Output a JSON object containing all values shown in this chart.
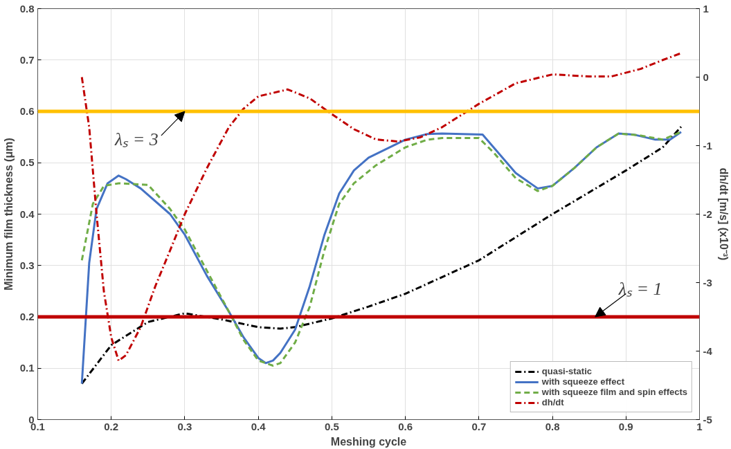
{
  "chart_data": {
    "type": "line",
    "xlabel": "Meshing cycle",
    "ylabel": "Minimum film thickness (μm)",
    "y2label": "dh/dt [m/s] (x10⁻³)",
    "xlim": [
      0.1,
      1
    ],
    "xticks": [
      0.1,
      0.2,
      0.3,
      0.4,
      0.5,
      0.6,
      0.7,
      0.8,
      0.9,
      1
    ],
    "ylim": [
      0,
      0.8
    ],
    "yticks": [
      0,
      0.1,
      0.2,
      0.3,
      0.4,
      0.5,
      0.6,
      0.7,
      0.8
    ],
    "y2lim": [
      -5,
      1
    ],
    "y2ticks": [
      -5,
      -4,
      -3,
      -2,
      -1,
      0,
      1
    ],
    "grid": true,
    "legend": "bottom right",
    "series": [
      {
        "name": "quasi-static",
        "color": "#000000",
        "line_style": "dashdot",
        "x": [
          0.16,
          0.2,
          0.25,
          0.3,
          0.35,
          0.4,
          0.43,
          0.45,
          0.5,
          0.55,
          0.6,
          0.7,
          0.8,
          0.9,
          0.95,
          0.975
        ],
        "values": [
          0.07,
          0.145,
          0.19,
          0.207,
          0.195,
          0.18,
          0.177,
          0.18,
          0.197,
          0.22,
          0.245,
          0.31,
          0.4,
          0.485,
          0.53,
          0.57
        ]
      },
      {
        "name": "with squeeze effect",
        "color": "#4472c4",
        "line_style": "solid",
        "x": [
          0.16,
          0.17,
          0.18,
          0.195,
          0.21,
          0.22,
          0.24,
          0.28,
          0.3,
          0.33,
          0.36,
          0.38,
          0.4,
          0.41,
          0.42,
          0.43,
          0.45,
          0.47,
          0.49,
          0.51,
          0.53,
          0.55,
          0.6,
          0.63,
          0.65,
          0.705,
          0.72,
          0.75,
          0.78,
          0.8,
          0.83,
          0.86,
          0.89,
          0.91,
          0.94,
          0.96,
          0.975
        ],
        "values": [
          0.07,
          0.305,
          0.41,
          0.46,
          0.475,
          0.468,
          0.45,
          0.4,
          0.36,
          0.28,
          0.21,
          0.16,
          0.12,
          0.11,
          0.115,
          0.13,
          0.175,
          0.26,
          0.36,
          0.44,
          0.485,
          0.51,
          0.545,
          0.556,
          0.557,
          0.555,
          0.53,
          0.48,
          0.45,
          0.455,
          0.49,
          0.53,
          0.557,
          0.555,
          0.545,
          0.545,
          0.56
        ]
      },
      {
        "name": "with squeeze film and spin effects",
        "color": "#70ad47",
        "line_style": "dashed",
        "x": [
          0.16,
          0.175,
          0.19,
          0.21,
          0.25,
          0.28,
          0.3,
          0.33,
          0.36,
          0.38,
          0.4,
          0.42,
          0.43,
          0.45,
          0.47,
          0.49,
          0.51,
          0.53,
          0.56,
          0.6,
          0.63,
          0.65,
          0.7,
          0.72,
          0.75,
          0.78,
          0.8,
          0.83,
          0.86,
          0.89,
          0.92,
          0.95,
          0.975
        ],
        "values": [
          0.31,
          0.42,
          0.455,
          0.46,
          0.457,
          0.41,
          0.37,
          0.29,
          0.21,
          0.155,
          0.115,
          0.105,
          0.11,
          0.15,
          0.22,
          0.33,
          0.42,
          0.46,
          0.495,
          0.53,
          0.545,
          0.548,
          0.548,
          0.52,
          0.47,
          0.445,
          0.455,
          0.49,
          0.53,
          0.557,
          0.553,
          0.545,
          0.56
        ]
      },
      {
        "name": "dh/dt",
        "color": "#c00000",
        "line_style": "dashdot",
        "axis": "y2",
        "x": [
          0.16,
          0.17,
          0.18,
          0.19,
          0.2,
          0.21,
          0.22,
          0.24,
          0.26,
          0.28,
          0.3,
          0.33,
          0.36,
          0.38,
          0.4,
          0.44,
          0.47,
          0.5,
          0.53,
          0.56,
          0.59,
          0.62,
          0.65,
          0.7,
          0.75,
          0.8,
          0.85,
          0.88,
          0.92,
          0.95,
          0.975
        ],
        "values": [
          0,
          -0.73,
          -2.0,
          -3.13,
          -3.8,
          -4.14,
          -4.06,
          -3.65,
          -3.05,
          -2.53,
          -2.0,
          -1.33,
          -0.73,
          -0.46,
          -0.28,
          -0.18,
          -0.31,
          -0.54,
          -0.76,
          -0.91,
          -0.94,
          -0.88,
          -0.73,
          -0.39,
          -0.09,
          0.04,
          0.01,
          0.01,
          0.12,
          0.25,
          0.35
        ]
      }
    ],
    "ref_lines": [
      {
        "axis": "y",
        "value": 0.6,
        "color": "#ffc000"
      },
      {
        "axis": "y",
        "value": 0.2,
        "color": "#c00000"
      }
    ],
    "annotations": [
      {
        "text": "λₛ = 3",
        "x": 0.3,
        "y": 0.6
      },
      {
        "text": "λₛ = 1",
        "x": 0.858,
        "y": 0.2
      }
    ]
  }
}
